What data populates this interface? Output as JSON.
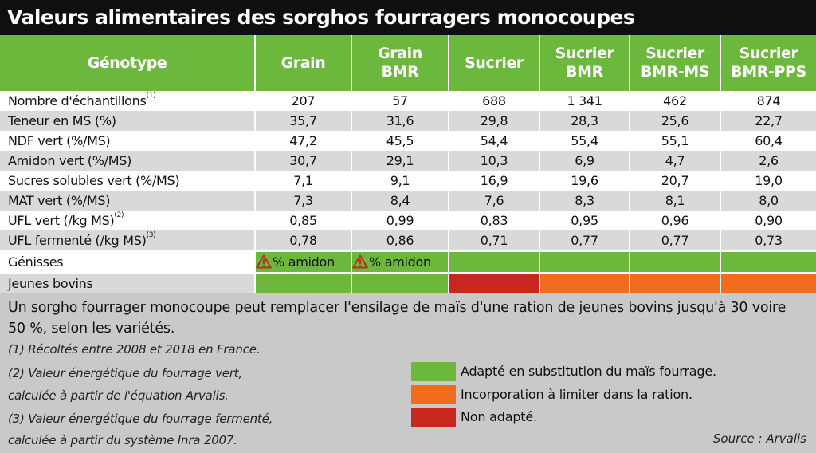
{
  "title": "Valeurs alimentaires des sorghos fourragers monocoupes",
  "table": {
    "headers": [
      "Génotype",
      "Grain",
      "Grain\nBMR",
      "Sucrier",
      "Sucrier\nBMR",
      "Sucrier\nBMR-MS",
      "Sucrier\nBMR-PPS"
    ],
    "rows": [
      {
        "label": "Nombre d'échantillons",
        "sup": "(1)",
        "values": [
          "207",
          "57",
          "688",
          "1 341",
          "462",
          "874"
        ]
      },
      {
        "label": "Teneur en MS (%)",
        "sup": "",
        "values": [
          "35,7",
          "31,6",
          "29,8",
          "28,3",
          "25,6",
          "22,7"
        ]
      },
      {
        "label": "NDF vert (%/MS)",
        "sup": "",
        "values": [
          "47,2",
          "45,5",
          "54,4",
          "55,4",
          "55,1",
          "60,4"
        ]
      },
      {
        "label": "Amidon vert (%/MS)",
        "sup": "",
        "values": [
          "30,7",
          "29,1",
          "10,3",
          "6,9",
          "4,7",
          "2,6"
        ]
      },
      {
        "label": "Sucres solubles vert (%/MS)",
        "sup": "",
        "values": [
          "7,1",
          "9,1",
          "16,9",
          "19,6",
          "20,7",
          "19,0"
        ]
      },
      {
        "label": "MAT vert (%/MS)",
        "sup": "",
        "values": [
          "7,3",
          "8,4",
          "7,6",
          "8,3",
          "8,1",
          "8,0"
        ]
      },
      {
        "label": "UFL vert (/kg MS)",
        "sup": "(2)",
        "values": [
          "0,85",
          "0,99",
          "0,83",
          "0,95",
          "0,96",
          "0,90"
        ]
      },
      {
        "label": "UFL fermenté (/kg MS)",
        "sup": "(3)",
        "values": [
          "0,78",
          "0,86",
          "0,71",
          "0,77",
          "0,77",
          "0,73"
        ]
      }
    ],
    "ratings": [
      {
        "label": "Génisses",
        "cells": [
          {
            "color": "green",
            "warning": true,
            "text": "% amidon"
          },
          {
            "color": "green",
            "warning": true,
            "text": "% amidon"
          },
          {
            "color": "green",
            "warning": false,
            "text": ""
          },
          {
            "color": "green",
            "warning": false,
            "text": ""
          },
          {
            "color": "green",
            "warning": false,
            "text": ""
          },
          {
            "color": "green",
            "warning": false,
            "text": ""
          }
        ]
      },
      {
        "label": "Jeunes bovins",
        "cells": [
          {
            "color": "green",
            "warning": false,
            "text": ""
          },
          {
            "color": "green",
            "warning": false,
            "text": ""
          },
          {
            "color": "red",
            "warning": false,
            "text": ""
          },
          {
            "color": "orange",
            "warning": false,
            "text": ""
          },
          {
            "color": "orange",
            "warning": false,
            "text": ""
          },
          {
            "color": "orange",
            "warning": false,
            "text": ""
          }
        ]
      }
    ]
  },
  "summary": "Un sorgho fourrager monocoupe peut remplacer l'ensilage de maïs d'une ration de jeunes bovins jusqu'à 30 voire 50 %, selon les variétés.",
  "notes": {
    "n1": "(1) Récoltés entre 2008 et 2018 en France.",
    "n2_line1": "(2) Valeur énergétique du fourrage vert,",
    "n2_line2": "calculée à partir de l'équation Arvalis.",
    "n3_line1": "(3) Valeur énergétique du fourrage fermenté,",
    "n3_line2": "calculée à partir du système Inra 2007."
  },
  "legend": [
    {
      "color": "#6cb83c",
      "label": "Adapté en substitution du maïs fourrage."
    },
    {
      "color": "#f26c1e",
      "label": "Incorporation à limiter dans la ration."
    },
    {
      "color": "#c9261e",
      "label": "Non adapté."
    }
  ],
  "source": "Source : Arvalis",
  "colors": {
    "green": "#6cb83c",
    "orange": "#f26c1e",
    "red": "#c9261e",
    "title_bg": "#0f0f0f"
  }
}
